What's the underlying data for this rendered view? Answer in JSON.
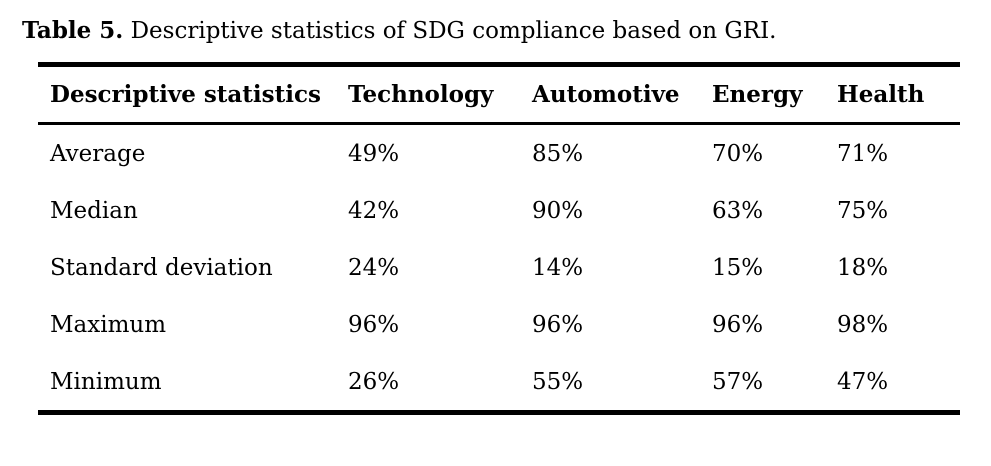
{
  "caption": {
    "label": "Table 5.",
    "text": "Descriptive statistics of SDG compliance based on GRI."
  },
  "table": {
    "columns": [
      "Descriptive statistics",
      "Technology",
      "Automotive",
      "Energy",
      "Health"
    ],
    "rows": [
      {
        "label": "Average",
        "values": [
          "49%",
          "85%",
          "70%",
          "71%"
        ]
      },
      {
        "label": "Median",
        "values": [
          "42%",
          "90%",
          "63%",
          "75%"
        ]
      },
      {
        "label": "Standard deviation",
        "values": [
          "24%",
          "14%",
          "15%",
          "18%"
        ]
      },
      {
        "label": "Maximum",
        "values": [
          "96%",
          "96%",
          "96%",
          "98%"
        ]
      },
      {
        "label": "Minimum",
        "values": [
          "26%",
          "55%",
          "57%",
          "47%"
        ]
      }
    ]
  },
  "colors": {
    "background": "#ffffff",
    "text": "#000000",
    "rule": "#000000"
  }
}
